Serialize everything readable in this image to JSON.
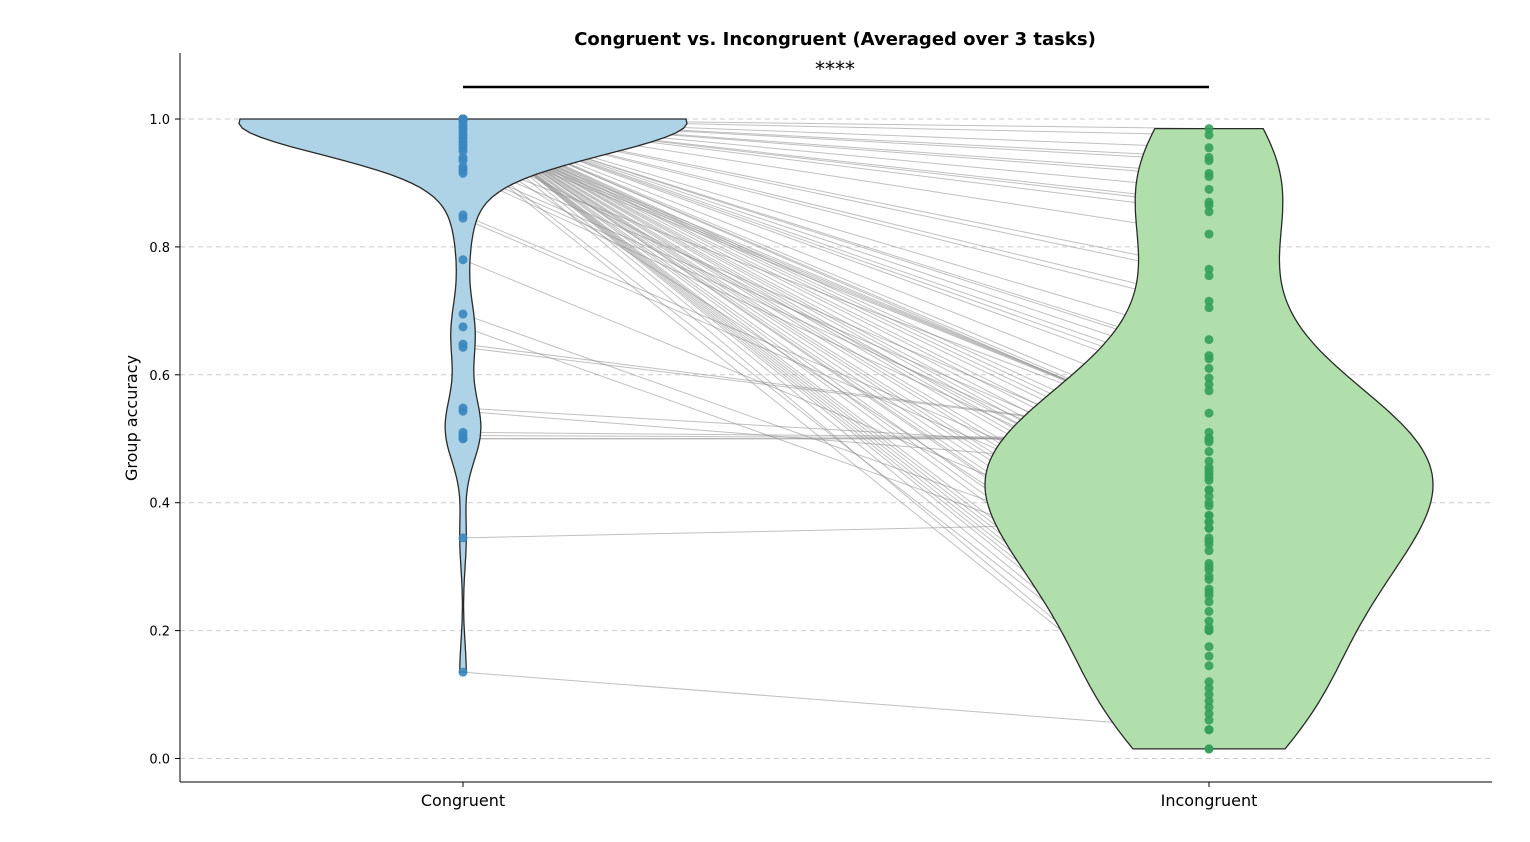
{
  "chart_data": {
    "type": "violin",
    "title": "Congruent vs. Incongruent (Averaged over 3 tasks)",
    "xlabel": "",
    "ylabel": "Group accuracy",
    "ylim": [
      -0.04,
      1.1
    ],
    "yticks": [
      "0.0",
      "0.2",
      "0.4",
      "0.6",
      "0.8",
      "1.0"
    ],
    "grid": "y-dashed",
    "significance": "****",
    "categories": [
      "Congruent",
      "Incongruent"
    ],
    "colors": {
      "congruent_fill": "#aed2e6",
      "congruent_points": "#3a86c0",
      "incongruent_fill": "#b1dfac",
      "incongruent_points": "#34a05a",
      "pair_lines": "#8c8c8c"
    },
    "congruent_values": [
      1.0,
      1.0,
      1.0,
      1.0,
      1.0,
      1.0,
      1.0,
      1.0,
      1.0,
      1.0,
      1.0,
      1.0,
      1.0,
      1.0,
      1.0,
      1.0,
      1.0,
      1.0,
      1.0,
      1.0,
      1.0,
      1.0,
      1.0,
      1.0,
      1.0,
      1.0,
      1.0,
      1.0,
      1.0,
      1.0,
      1.0,
      1.0,
      1.0,
      1.0,
      1.0,
      1.0,
      1.0,
      1.0,
      1.0,
      1.0,
      1.0,
      1.0,
      1.0,
      1.0,
      1.0,
      1.0,
      1.0,
      1.0,
      1.0,
      1.0,
      1.0,
      1.0,
      1.0,
      1.0,
      1.0,
      1.0,
      1.0,
      1.0,
      1.0,
      1.0,
      0.995,
      0.99,
      0.985,
      0.98,
      0.975,
      0.97,
      0.965,
      0.96,
      0.955,
      0.95,
      0.94,
      0.935,
      0.925,
      0.92,
      0.915,
      0.85,
      0.845,
      0.78,
      0.695,
      0.675,
      0.648,
      0.643,
      0.548,
      0.543,
      0.51,
      0.505,
      0.5,
      0.5,
      0.345,
      0.135
    ],
    "incongruent_values": [
      0.985,
      0.975,
      0.955,
      0.94,
      0.935,
      0.915,
      0.91,
      0.89,
      0.87,
      0.865,
      0.855,
      0.82,
      0.765,
      0.755,
      0.715,
      0.705,
      0.655,
      0.63,
      0.625,
      0.61,
      0.595,
      0.585,
      0.575,
      0.54,
      0.51,
      0.5,
      0.495,
      0.465,
      0.455,
      0.445,
      0.435,
      0.42,
      0.41,
      0.395,
      0.38,
      0.37,
      0.36,
      0.345,
      0.335,
      0.325,
      0.305,
      0.295,
      0.285,
      0.265,
      0.255,
      0.245,
      0.23,
      0.215,
      0.205,
      0.2,
      0.175,
      0.16,
      0.145,
      0.12,
      0.11,
      0.1,
      0.09,
      0.08,
      0.07,
      0.06,
      0.045,
      0.015,
      0.5,
      0.5,
      0.5,
      0.5,
      0.37,
      0.2,
      0.045,
      0.015,
      0.5,
      0.44,
      0.42,
      0.4,
      0.38,
      0.36,
      0.34,
      0.3,
      0.28,
      0.26,
      0.5,
      0.5,
      0.48,
      0.45,
      0.5,
      0.5,
      0.5,
      0.5,
      0.37,
      0.045
    ]
  }
}
